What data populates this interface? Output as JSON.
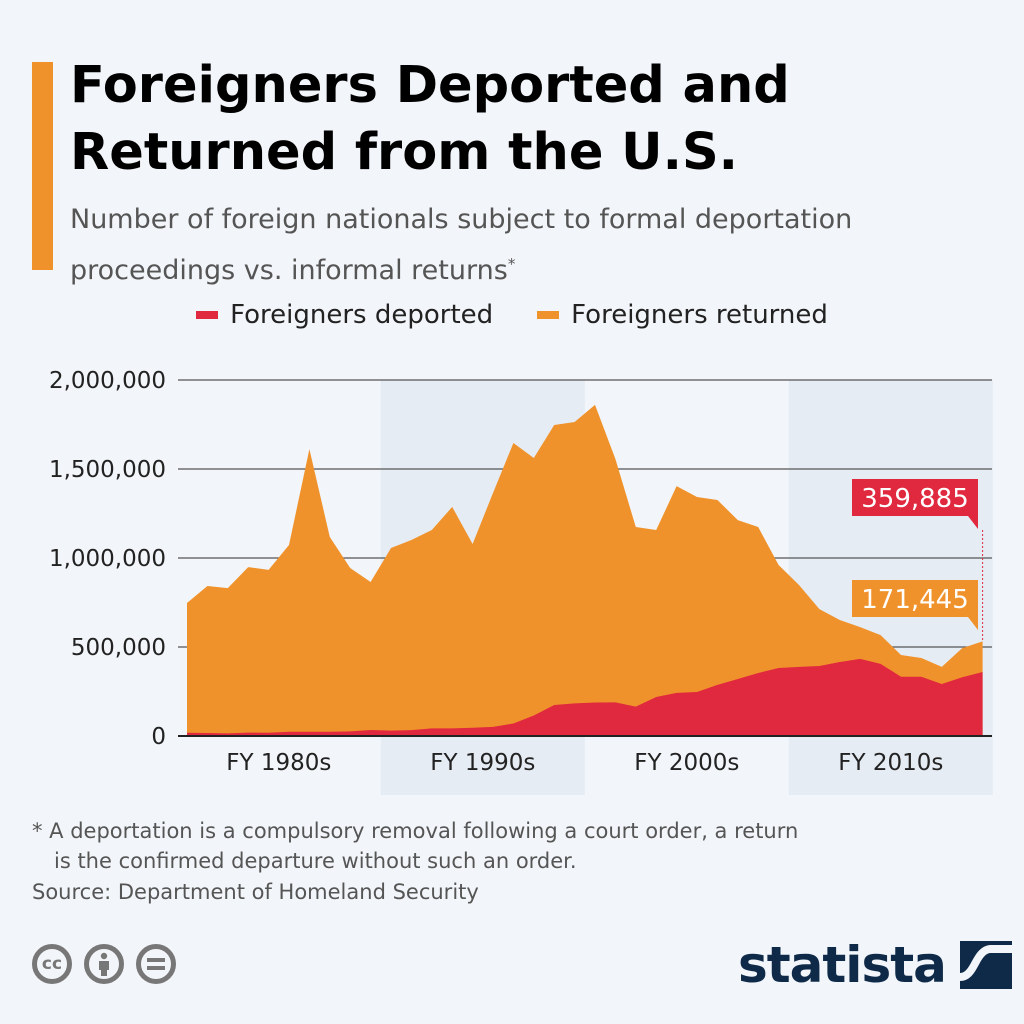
{
  "header": {
    "title_line1": "Foreigners Deported and",
    "title_line2": "Returned from the U.S.",
    "subtitle_line1": "Number of foreign nationals subject to formal deportation",
    "subtitle_line2": "proceedings vs. informal returns",
    "subtitle_mark": "*"
  },
  "colors": {
    "deported": "#e0293f",
    "returned": "#f0922b",
    "band": "#e6ecf4",
    "grid": "#555555"
  },
  "chart_data": {
    "type": "area",
    "stacked": true,
    "title": "",
    "xlabel": "",
    "ylabel": "",
    "ylim": [
      0,
      2000000
    ],
    "yticks": [
      "0",
      "500,000",
      "1,000,000",
      "1,500,000",
      "2,000,000"
    ],
    "ytick_values": [
      0,
      500000,
      1000000,
      1500000,
      2000000
    ],
    "x_category_labels": [
      "FY 1980s",
      "FY 1990s",
      "FY 2000s",
      "FY 2010s"
    ],
    "x": [
      1980,
      1981,
      1982,
      1983,
      1984,
      1985,
      1986,
      1987,
      1988,
      1989,
      1990,
      1991,
      1992,
      1993,
      1994,
      1995,
      1996,
      1997,
      1998,
      1999,
      2000,
      2001,
      2002,
      2003,
      2004,
      2005,
      2006,
      2007,
      2008,
      2009,
      2010,
      2011,
      2012,
      2013,
      2014,
      2015,
      2016,
      2017,
      2018,
      2019
    ],
    "legend_placement": "top",
    "grid": true,
    "series": [
      {
        "name": "Foreigners deported",
        "color": "#e0293f",
        "values": [
          18000,
          17000,
          15000,
          19000,
          18000,
          24000,
          24000,
          24000,
          26000,
          34000,
          30000,
          33000,
          43000,
          43000,
          46000,
          51000,
          70000,
          115000,
          174000,
          183000,
          188000,
          189000,
          165000,
          219000,
          242000,
          247000,
          287000,
          320000,
          354000,
          382000,
          388000,
          393000,
          416000,
          433000,
          405000,
          333000,
          333000,
          292000,
          330000,
          359885
        ]
      },
      {
        "name": "Foreigners returned",
        "color": "#f0922b",
        "values": [
          729000,
          826000,
          816000,
          930000,
          915000,
          1049000,
          1588000,
          1094000,
          918000,
          831000,
          1026000,
          1068000,
          1114000,
          1244000,
          1033000,
          1314000,
          1576000,
          1447000,
          1573000,
          1581000,
          1672000,
          1367000,
          1009000,
          938000,
          1162000,
          1096000,
          1039000,
          893000,
          820000,
          579000,
          460000,
          320000,
          236000,
          179000,
          162000,
          122000,
          105000,
          96000,
          164000,
          171445
        ]
      }
    ],
    "annotations": [
      {
        "series": "Foreigners deported",
        "text": "359,885"
      },
      {
        "series": "Foreigners returned",
        "text": "171,445"
      }
    ]
  },
  "footer": {
    "footnote_line1": "* A deportation is a compulsory removal following a court order, a return",
    "footnote_line2": "is the confirmed departure without such an order.",
    "source": "Source: Department of Homeland Security",
    "cc_label": "cc",
    "logo_text": "statista"
  }
}
